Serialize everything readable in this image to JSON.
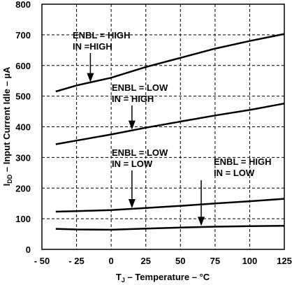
{
  "chart_data": {
    "type": "line",
    "xlabel": "T_J – Temperature – °C",
    "ylabel": "I_DD – Input Current Idle – µA",
    "xlim": [
      -50,
      125
    ],
    "ylim": [
      0,
      800
    ],
    "x_ticks": [
      -50,
      -25,
      0,
      25,
      50,
      75,
      100,
      125
    ],
    "x_tick_labels": [
      "- 50",
      "- 25",
      "0",
      "25",
      "50",
      "75",
      "100",
      "125"
    ],
    "y_ticks": [
      0,
      100,
      200,
      300,
      400,
      500,
      600,
      700,
      800
    ],
    "y_tick_labels": [
      "0",
      "100",
      "200",
      "300",
      "400",
      "500",
      "600",
      "700",
      "800"
    ],
    "grid": true,
    "series": [
      {
        "name": "ENBL = HIGH, IN = HIGH",
        "x": [
          -40,
          -25,
          0,
          25,
          50,
          75,
          100,
          125
        ],
        "y": [
          515,
          535,
          560,
          595,
          625,
          655,
          680,
          703
        ]
      },
      {
        "name": "ENBL = LOW, IN = HIGH",
        "x": [
          -40,
          -25,
          0,
          25,
          50,
          75,
          100,
          125
        ],
        "y": [
          343,
          355,
          375,
          397,
          417,
          437,
          455,
          476
        ]
      },
      {
        "name": "ENBL = LOW, IN = LOW",
        "x": [
          -40,
          -25,
          0,
          25,
          50,
          75,
          100,
          125
        ],
        "y": [
          123,
          125,
          128,
          135,
          142,
          150,
          157,
          165
        ]
      },
      {
        "name": "ENBL = HIGH, IN = LOW",
        "x": [
          -40,
          -25,
          0,
          25,
          50,
          75,
          100,
          125
        ],
        "y": [
          67,
          65,
          64,
          68,
          71,
          74,
          76,
          77
        ]
      }
    ],
    "annotations": [
      {
        "lines": [
          "ENBL = HIGH",
          "IN =HIGH"
        ],
        "target_x": -15,
        "target_y": 541,
        "series": 0
      },
      {
        "lines": [
          "ENBL = LOW",
          "IN = HIGH"
        ],
        "target_x": 15,
        "target_y": 386,
        "series": 1
      },
      {
        "lines": [
          "ENBL = LOW",
          "IN = LOW"
        ],
        "target_x": 15,
        "target_y": 130,
        "series": 2
      },
      {
        "lines": [
          "ENBL = HIGH",
          "IN = LOW"
        ],
        "target_x": 65,
        "target_y": 72,
        "series": 3
      }
    ]
  }
}
